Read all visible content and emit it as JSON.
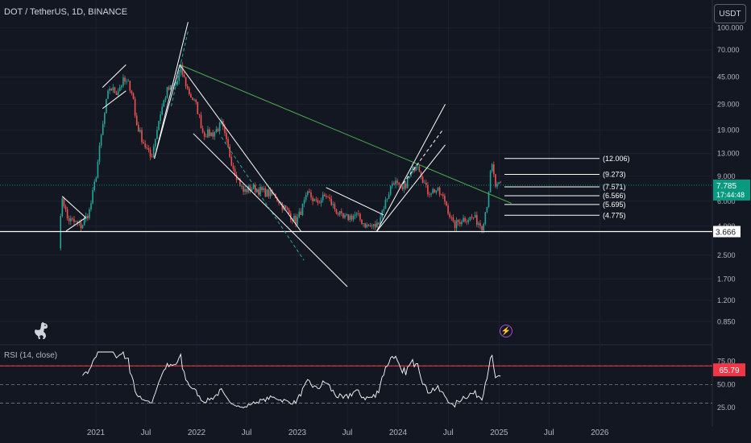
{
  "header": {
    "symbol_title": "DOT / TetherUS, 1D, BINANCE",
    "currency_button": "USDT"
  },
  "rsi_panel": {
    "title": "RSI (14, close)"
  },
  "colors": {
    "background": "#131722",
    "grid": "#1e222d",
    "candle_up": "#26a69a",
    "candle_down": "#ef5350",
    "trend_line": "#4caf50",
    "annotation": "#ffffff",
    "price_badge": "#089981",
    "rsi_line": "#ffffff",
    "rsi_value_badge": "#f23645",
    "event_marker": "#a94edc"
  },
  "icons": {
    "logo": "dinosaur-icon",
    "event": "lightning-icon"
  },
  "chart_data": [
    {
      "type": "candlestick",
      "title": "DOT / TetherUS, 1D, BINANCE",
      "yscale": "log",
      "ylim": [
        0.72,
        118
      ],
      "y_tick_labels": [
        "100.000",
        "70.000",
        "45.000",
        "29.000",
        "19.000",
        "13.000",
        "9.000",
        "6.000",
        "4.000",
        "2.500",
        "1.700",
        "1.200",
        "0.850"
      ],
      "x_tick_labels": [
        "2021",
        "Jul",
        "2022",
        "Jul",
        "2023",
        "Jul",
        "2024",
        "Jul",
        "2025",
        "Jul",
        "2026"
      ],
      "current_price": "7.785",
      "countdown": "17:44:48",
      "horizontal_support": "3.666",
      "target_levels": [
        "(12.006)",
        "(9.273)",
        "(7.571)",
        "(6.566)",
        "(5.695)",
        "(4.775)"
      ],
      "price_path": [
        [
          "2020-08-20",
          3.0
        ],
        [
          "2020-09-01",
          6.5
        ],
        [
          "2020-09-20",
          4.5
        ],
        [
          "2020-10-10",
          4.3
        ],
        [
          "2020-11-10",
          4.0
        ],
        [
          "2020-12-10",
          5.2
        ],
        [
          "2021-01-01",
          9.0
        ],
        [
          "2021-01-20",
          17.0
        ],
        [
          "2021-02-10",
          32.0
        ],
        [
          "2021-02-20",
          38.0
        ],
        [
          "2021-03-15",
          35.0
        ],
        [
          "2021-04-10",
          42.0
        ],
        [
          "2021-05-01",
          40.0
        ],
        [
          "2021-05-15",
          34.0
        ],
        [
          "2021-05-25",
          22.0
        ],
        [
          "2021-06-20",
          16.0
        ],
        [
          "2021-07-20",
          12.0
        ],
        [
          "2021-08-20",
          24.0
        ],
        [
          "2021-09-15",
          36.0
        ],
        [
          "2021-10-20",
          40.0
        ],
        [
          "2021-11-04",
          52.0
        ],
        [
          "2021-12-01",
          36.0
        ],
        [
          "2022-01-01",
          28.0
        ],
        [
          "2022-01-25",
          18.0
        ],
        [
          "2022-03-01",
          18.0
        ],
        [
          "2022-04-01",
          21.0
        ],
        [
          "2022-05-10",
          11.0
        ],
        [
          "2022-06-18",
          7.0
        ],
        [
          "2022-07-20",
          7.5
        ],
        [
          "2022-09-01",
          7.0
        ],
        [
          "2022-10-15",
          6.5
        ],
        [
          "2022-11-10",
          5.5
        ],
        [
          "2022-12-28",
          4.3
        ],
        [
          "2023-02-10",
          6.8
        ],
        [
          "2023-03-10",
          5.8
        ],
        [
          "2023-04-15",
          6.6
        ],
        [
          "2023-05-20",
          5.2
        ],
        [
          "2023-06-15",
          4.5
        ],
        [
          "2023-08-01",
          4.8
        ],
        [
          "2023-09-10",
          4.0
        ],
        [
          "2023-10-15",
          4.0
        ],
        [
          "2023-11-10",
          5.5
        ],
        [
          "2023-12-15",
          8.5
        ],
        [
          "2024-01-15",
          7.0
        ],
        [
          "2024-03-10",
          11.5
        ],
        [
          "2024-04-15",
          7.0
        ],
        [
          "2024-05-20",
          7.2
        ],
        [
          "2024-06-20",
          6.0
        ],
        [
          "2024-07-20",
          4.0
        ],
        [
          "2024-08-20",
          4.5
        ],
        [
          "2024-10-01",
          4.6
        ],
        [
          "2024-11-01",
          4.0
        ],
        [
          "2024-11-20",
          6.0
        ],
        [
          "2024-12-05",
          11.0
        ],
        [
          "2024-12-20",
          7.5
        ],
        [
          "2025-01-10",
          7.785
        ]
      ],
      "rsi_scale": {
        "ylim": [
          20,
          85
        ],
        "tick_labels": [
          "75.00",
          "50.00",
          "25.00"
        ],
        "levels": [
          70,
          50,
          30
        ],
        "current_value": "65.79"
      }
    }
  ]
}
